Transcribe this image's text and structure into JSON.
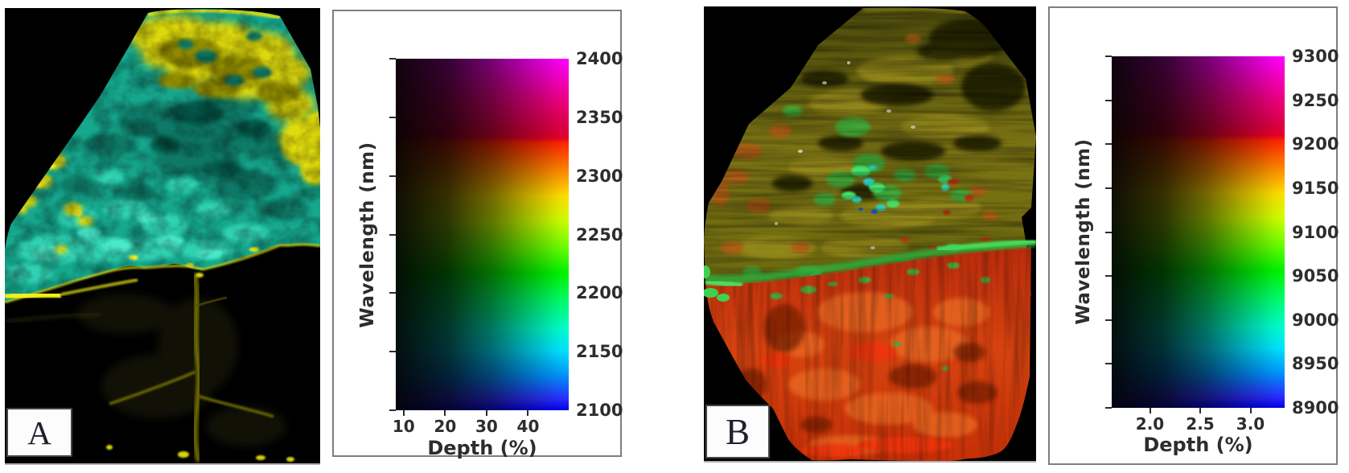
{
  "figure": {
    "background": "#ffffff",
    "panel_border_color": "#7e7e7e",
    "text_color": "#2d2d2d",
    "colors": {
      "sample_a_cyan": "#2fd9bd",
      "sample_a_yellow": "#e3de0f",
      "sample_b_olive": "#6f6a10",
      "sample_b_green": "#3db848",
      "sample_b_red": "#cf3a10",
      "colorbar_top": "#ff00ff",
      "colorbar_bottom": "#0000ee"
    }
  },
  "chart_data": [
    {
      "panel_label": "A",
      "type": "heatmap",
      "description": "False-colour hyperspectral map of rock sample A: mottled cyan-teal upper mass (~2150-2200 nm) with yellow patches (~2260-2280 nm) along the top edge, right edge and left margin; lower half near-black with a bright yellow streak along the contact and a faint branching yellow vein network.",
      "colorbar": {
        "ylabel": "Wavelength (nm)",
        "xlabel": "Depth (%)",
        "y_range": [
          2100,
          2400
        ],
        "y_ticks": [
          {
            "v": 2400,
            "label": "2400"
          },
          {
            "v": 2350,
            "label": "2350"
          },
          {
            "v": 2300,
            "label": "2300"
          },
          {
            "v": 2250,
            "label": "2250"
          },
          {
            "v": 2200,
            "label": "2200"
          },
          {
            "v": 2150,
            "label": "2150"
          },
          {
            "v": 2100,
            "label": "2100"
          }
        ],
        "x_range": [
          8.1,
          49.8
        ],
        "x_ticks": [
          {
            "v": 10,
            "label": "10"
          },
          {
            "v": 20,
            "label": "20"
          },
          {
            "v": 30,
            "label": "30"
          },
          {
            "v": 40,
            "label": "40"
          }
        ],
        "color_encoding": "hue = wavelength (blue 2100 -> cyan 2150 -> green 2200 -> yellow 2270 -> red 2330 -> magenta 2400); brightness = depth (dark at low %, bright at high %)"
      }
    },
    {
      "panel_label": "B",
      "type": "heatmap",
      "description": "False-colour hyperspectral map of rock sample B: upper half streaky olive/yellow-green (~9100-9150 nm) with bright green and cyan patches (~9000-9050 nm) and orange-brown flecks; lower half bright red-orange (~9150-9200 nm) with vertical striations; green band along the contact.",
      "colorbar": {
        "ylabel": "Wavelength (nm)",
        "xlabel": "Depth (%)",
        "y_range": [
          8900,
          9300
        ],
        "y_ticks": [
          {
            "v": 9300,
            "label": "9300"
          },
          {
            "v": 9250,
            "label": "9250"
          },
          {
            "v": 9200,
            "label": "9200"
          },
          {
            "v": 9150,
            "label": "9150"
          },
          {
            "v": 9100,
            "label": "9100"
          },
          {
            "v": 9050,
            "label": "9050"
          },
          {
            "v": 9000,
            "label": "9000"
          },
          {
            "v": 8950,
            "label": "8950"
          },
          {
            "v": 8900,
            "label": "8900"
          }
        ],
        "x_range": [
          1.62,
          3.34
        ],
        "x_ticks": [
          {
            "v": 2.0,
            "label": "2.0"
          },
          {
            "v": 2.5,
            "label": "2.5"
          },
          {
            "v": 3.0,
            "label": "3.0"
          }
        ],
        "color_encoding": "hue = wavelength (blue 8900 -> cyan 8950 -> green 9050 -> yellow 9100 -> red 9200 -> magenta 9300); brightness = depth (dark at low %, bright at high %)"
      }
    }
  ]
}
